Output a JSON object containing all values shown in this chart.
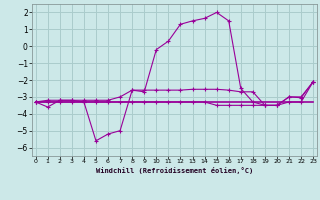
{
  "xlabel": "Windchill (Refroidissement éolien,°C)",
  "x": [
    0,
    1,
    2,
    3,
    4,
    5,
    6,
    7,
    8,
    9,
    10,
    11,
    12,
    13,
    14,
    15,
    16,
    17,
    18,
    19,
    20,
    21,
    22,
    23
  ],
  "line_main": [
    -3.3,
    -3.6,
    -3.2,
    -3.2,
    -3.3,
    -5.6,
    -5.2,
    -5.0,
    -2.6,
    -2.7,
    -0.2,
    0.3,
    1.3,
    1.5,
    1.65,
    2.0,
    1.5,
    -2.5,
    -3.3,
    -3.5,
    -3.5,
    -3.0,
    -3.05,
    -2.1
  ],
  "line_trend1": [
    -3.3,
    -3.2,
    -3.2,
    -3.2,
    -3.2,
    -3.2,
    -3.2,
    -3.0,
    -2.6,
    -2.6,
    -2.6,
    -2.6,
    -2.6,
    -2.55,
    -2.55,
    -2.55,
    -2.6,
    -2.7,
    -2.7,
    -3.5,
    -3.5,
    -3.0,
    -3.0,
    -2.1
  ],
  "line_flat": [
    -3.3,
    -3.3,
    -3.3,
    -3.3,
    -3.3,
    -3.3,
    -3.3,
    -3.3,
    -3.3,
    -3.3,
    -3.3,
    -3.3,
    -3.3,
    -3.3,
    -3.3,
    -3.3,
    -3.3,
    -3.3,
    -3.3,
    -3.3,
    -3.3,
    -3.3,
    -3.3,
    -3.3
  ],
  "line_trend2": [
    -3.3,
    -3.3,
    -3.3,
    -3.3,
    -3.3,
    -3.3,
    -3.3,
    -3.3,
    -3.3,
    -3.3,
    -3.3,
    -3.3,
    -3.3,
    -3.3,
    -3.3,
    -3.5,
    -3.5,
    -3.5,
    -3.5,
    -3.5,
    -3.5,
    -3.3,
    -3.3,
    -2.1
  ],
  "color": "#990099",
  "bg_color": "#cce8e8",
  "grid_color": "#aacccc",
  "ylim": [
    -6.5,
    2.5
  ],
  "xlim": [
    -0.3,
    23.3
  ],
  "yticks": [
    2,
    1,
    0,
    -1,
    -2,
    -3,
    -4,
    -5,
    -6
  ],
  "xticks": [
    0,
    1,
    2,
    3,
    4,
    5,
    6,
    7,
    8,
    9,
    10,
    11,
    12,
    13,
    14,
    15,
    16,
    17,
    18,
    19,
    20,
    21,
    22,
    23
  ]
}
